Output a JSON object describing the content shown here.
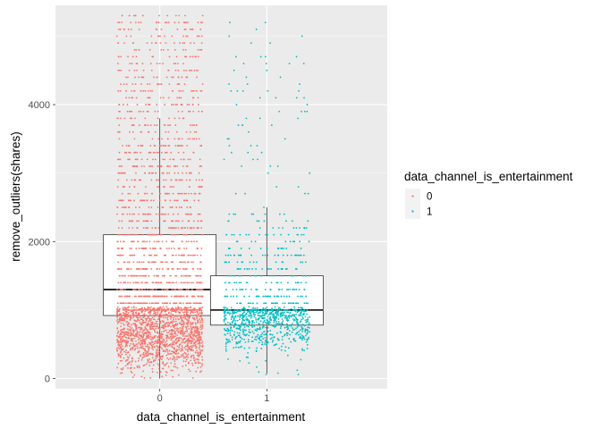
{
  "chart_data": {
    "type": "boxplot_jitter",
    "title": "",
    "xlabel": "data_channel_is_entertainment",
    "ylabel": "remove_outliers(shares)",
    "categories": [
      "0",
      "1"
    ],
    "ylim": [
      -150,
      5450
    ],
    "y_ticks": [
      0,
      2000,
      4000
    ],
    "y_tick_labels": [
      "0",
      "2000",
      "4000"
    ],
    "grid": true,
    "legend": {
      "title": "data_channel_is_entertainment",
      "position": "right",
      "entries": [
        "0",
        "1"
      ]
    },
    "colors": {
      "0": "#F8766D",
      "1": "#00BFC4",
      "panel_background": "#EBEBEB",
      "gridline": "#FFFFFF"
    },
    "boxes": [
      {
        "category": "0",
        "lower_whisker": 0,
        "q1": 920,
        "median": 1300,
        "q3": 2100,
        "upper_whisker": 3800
      },
      {
        "category": "1",
        "lower_whisker": 70,
        "q1": 780,
        "median": 1000,
        "q3": 1500,
        "upper_whisker": 2500
      }
    ],
    "points": [
      {
        "category": "0",
        "range": [
          0,
          5300
        ],
        "dense_below": 1050
      },
      {
        "category": "1",
        "range": [
          50,
          5300
        ],
        "dense_below": 1050
      }
    ]
  }
}
